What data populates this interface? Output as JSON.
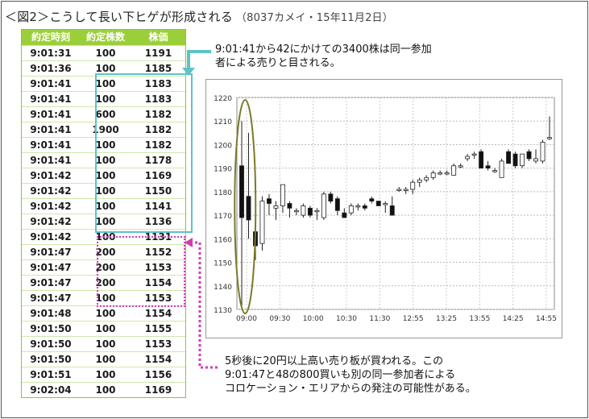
{
  "title": {
    "main": "＜図2＞こうして長い下ヒゲが形成される",
    "sub": "（8037カメイ・15年11月2日）"
  },
  "table": {
    "headers": [
      "約定時刻",
      "約定株数",
      "株価"
    ],
    "rows": [
      [
        "9:01:31",
        "100",
        "1191"
      ],
      [
        "9:01:36",
        "100",
        "1185"
      ],
      [
        "9:01:41",
        "100",
        "1183"
      ],
      [
        "9:01:41",
        "100",
        "1183"
      ],
      [
        "9:01:41",
        "600",
        "1182"
      ],
      [
        "9:01:41",
        "1900",
        "1182"
      ],
      [
        "9:01:41",
        "100",
        "1182"
      ],
      [
        "9:01:41",
        "100",
        "1178"
      ],
      [
        "9:01:42",
        "100",
        "1169"
      ],
      [
        "9:01:42",
        "100",
        "1150"
      ],
      [
        "9:01:42",
        "100",
        "1141"
      ],
      [
        "9:01:42",
        "100",
        "1136"
      ],
      [
        "9:01:42",
        "100",
        "1131"
      ],
      [
        "9:01:47",
        "200",
        "1152"
      ],
      [
        "9:01:47",
        "200",
        "1153"
      ],
      [
        "9:01:47",
        "200",
        "1154"
      ],
      [
        "9:01:47",
        "100",
        "1153"
      ],
      [
        "9:01:48",
        "100",
        "1154"
      ],
      [
        "9:01:50",
        "100",
        "1155"
      ],
      [
        "9:01:50",
        "100",
        "1153"
      ],
      [
        "9:01:50",
        "100",
        "1154"
      ],
      [
        "9:01:51",
        "100",
        "1156"
      ],
      [
        "9:02:04",
        "100",
        "1169"
      ]
    ]
  },
  "notes": {
    "top_line1": "9:01:41から42にかけての3400株は同一参加",
    "top_line2": "者による売りと目される。",
    "bottom_line1": "5秒後に20円以上高い売り板が買われる。この",
    "bottom_line2": "9:01:47と48の800買いも別の同一参加者による",
    "bottom_line3": "コロケーション・エリアからの発注の可能性がある。"
  },
  "colors": {
    "table_header": "#9bcf3a",
    "cyan": "#5fc2c8",
    "magenta": "#d33ab4",
    "ellipse": "#7a7a2a"
  },
  "chart_data": {
    "type": "candlestick",
    "ylim": [
      1130,
      1220
    ],
    "yticks": [
      1130,
      1140,
      1150,
      1160,
      1170,
      1180,
      1190,
      1200,
      1210,
      1220
    ],
    "xtick_labels": [
      "09:00",
      "09:30",
      "10:00",
      "10:30",
      "11:30",
      "12:55",
      "13:25",
      "13:55",
      "14:25",
      "14:55"
    ],
    "grid": true,
    "candles": [
      {
        "o": 1191,
        "h": 1210,
        "l": 1131,
        "c": 1169
      },
      {
        "o": 1178,
        "h": 1205,
        "l": 1160,
        "c": 1168
      },
      {
        "o": 1163,
        "h": 1172,
        "l": 1151,
        "c": 1157
      },
      {
        "o": 1158,
        "h": 1178,
        "l": 1155,
        "c": 1176
      },
      {
        "o": 1177,
        "h": 1179,
        "l": 1170,
        "c": 1175
      },
      {
        "o": 1173,
        "h": 1176,
        "l": 1168,
        "c": 1174
      },
      {
        "o": 1174,
        "h": 1183,
        "l": 1171,
        "c": 1183
      },
      {
        "o": 1175,
        "h": 1176,
        "l": 1169,
        "c": 1173
      },
      {
        "o": 1172,
        "h": 1173,
        "l": 1170,
        "c": 1172
      },
      {
        "o": 1170,
        "h": 1175,
        "l": 1169,
        "c": 1174
      },
      {
        "o": 1173,
        "h": 1174,
        "l": 1169,
        "c": 1170
      },
      {
        "o": 1172,
        "h": 1173,
        "l": 1168,
        "c": 1172
      },
      {
        "o": 1169,
        "h": 1180,
        "l": 1168,
        "c": 1179
      },
      {
        "o": 1179,
        "h": 1180,
        "l": 1175,
        "c": 1176
      },
      {
        "o": 1177,
        "h": 1178,
        "l": 1170,
        "c": 1172
      },
      {
        "o": 1171,
        "h": 1173,
        "l": 1169,
        "c": 1169
      },
      {
        "o": 1171,
        "h": 1175,
        "l": 1170,
        "c": 1174
      },
      {
        "o": 1174,
        "h": 1175,
        "l": 1172,
        "c": 1174
      },
      {
        "o": 1174,
        "h": 1175,
        "l": 1172,
        "c": 1173
      },
      {
        "o": 1177,
        "h": 1178,
        "l": 1175,
        "c": 1176
      },
      {
        "o": 1176,
        "h": 1176,
        "l": 1174,
        "c": 1174
      },
      {
        "o": 1175,
        "h": 1176,
        "l": 1171,
        "c": 1175
      },
      {
        "o": 1174,
        "h": 1178,
        "l": 1170,
        "c": 1170
      },
      {
        "o": 1181,
        "h": 1182,
        "l": 1180,
        "c": 1181
      },
      {
        "o": 1181,
        "h": 1182,
        "l": 1179,
        "c": 1181
      },
      {
        "o": 1181,
        "h": 1185,
        "l": 1179,
        "c": 1184
      },
      {
        "o": 1184,
        "h": 1186,
        "l": 1182,
        "c": 1185
      },
      {
        "o": 1185,
        "h": 1187,
        "l": 1184,
        "c": 1186
      },
      {
        "o": 1186,
        "h": 1189,
        "l": 1185,
        "c": 1188
      },
      {
        "o": 1188,
        "h": 1189,
        "l": 1187,
        "c": 1188
      },
      {
        "o": 1188,
        "h": 1189,
        "l": 1187,
        "c": 1188
      },
      {
        "o": 1187,
        "h": 1192,
        "l": 1187,
        "c": 1191
      },
      {
        "o": 1191,
        "h": 1192,
        "l": 1190,
        "c": 1191
      },
      {
        "o": 1194,
        "h": 1196,
        "l": 1193,
        "c": 1195
      },
      {
        "o": 1196,
        "h": 1197,
        "l": 1194,
        "c": 1196
      },
      {
        "o": 1197,
        "h": 1198,
        "l": 1190,
        "c": 1190
      },
      {
        "o": 1191,
        "h": 1193,
        "l": 1189,
        "c": 1190
      },
      {
        "o": 1189,
        "h": 1190,
        "l": 1188,
        "c": 1189
      },
      {
        "o": 1186,
        "h": 1194,
        "l": 1186,
        "c": 1193
      },
      {
        "o": 1197,
        "h": 1198,
        "l": 1192,
        "c": 1192
      },
      {
        "o": 1196,
        "h": 1197,
        "l": 1190,
        "c": 1191
      },
      {
        "o": 1191,
        "h": 1196,
        "l": 1190,
        "c": 1196
      },
      {
        "o": 1197,
        "h": 1198,
        "l": 1193,
        "c": 1194
      },
      {
        "o": 1193,
        "h": 1198,
        "l": 1192,
        "c": 1194
      },
      {
        "o": 1193,
        "h": 1202,
        "l": 1192,
        "c": 1201
      },
      {
        "o": 1203,
        "h": 1212,
        "l": 1202,
        "c": 1203
      }
    ]
  }
}
